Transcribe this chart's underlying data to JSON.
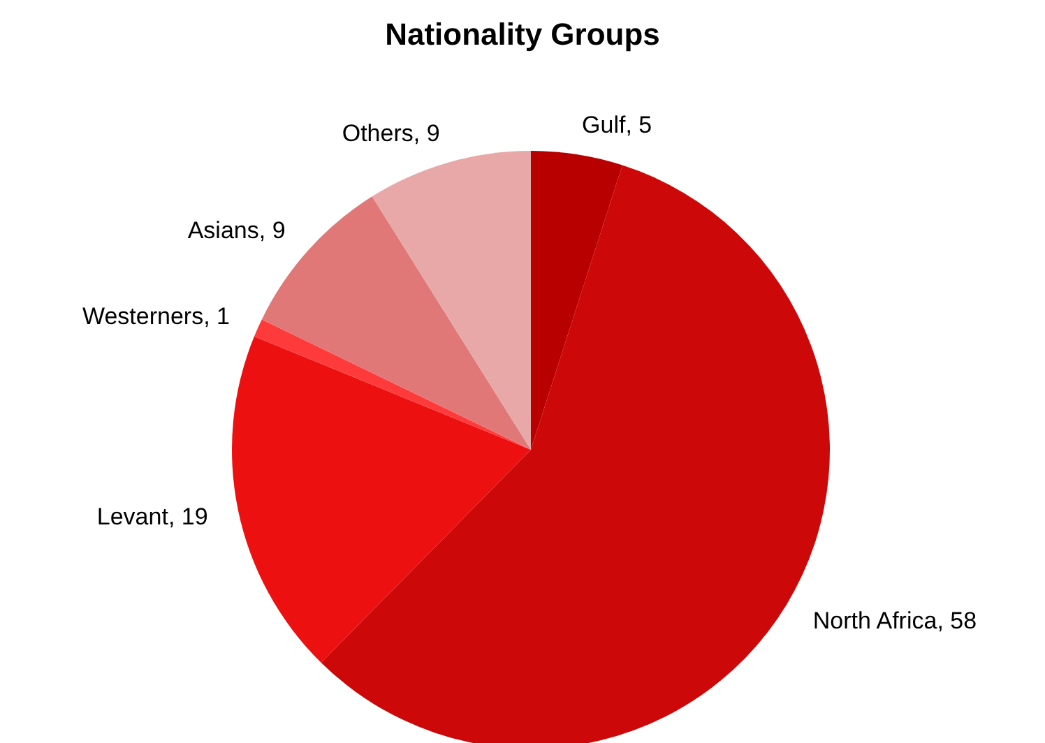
{
  "chart_data": {
    "type": "pie",
    "title": "Nationality Groups",
    "categories": [
      "Gulf",
      "North Africa",
      "Levant",
      "Westerners",
      "Asians",
      "Others"
    ],
    "values": [
      5,
      58,
      19,
      1,
      9,
      9
    ],
    "colors": [
      "#b80000",
      "#cc0808",
      "#ec1010",
      "#ff3a3a",
      "#e07878",
      "#e8a8a8"
    ],
    "value_labels": [
      ", 5",
      ", 58",
      ", 19",
      ", 1",
      ", 9",
      ", 9"
    ],
    "legend": false
  }
}
